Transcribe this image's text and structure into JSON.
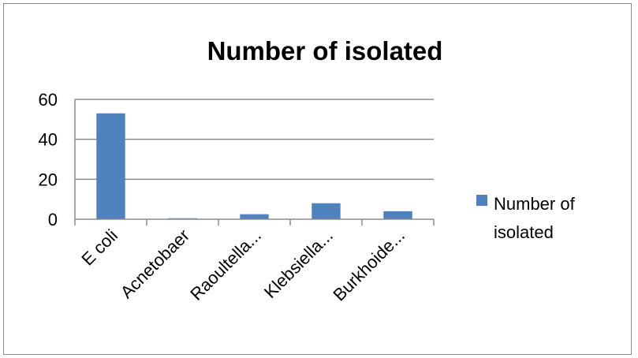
{
  "chart_data": {
    "type": "bar",
    "title": "Number of isolated",
    "xlabel": "",
    "ylabel": "",
    "categories": [
      "E coli",
      "Acnetobaer",
      "Raoultella...",
      "Klebsiella...",
      "Burkhoide..."
    ],
    "series": [
      {
        "name": "Number of isolated",
        "values": [
          53,
          0.5,
          2.5,
          8,
          4
        ]
      }
    ],
    "ylim": [
      0,
      60
    ],
    "yticks": [
      "0",
      "20",
      "40",
      "60"
    ],
    "grid": true,
    "legend": "right",
    "legend_lines": [
      "Number of",
      "isolated"
    ],
    "colors": {
      "bar": "#4f81bd",
      "grid": "#8c8c8c",
      "axis": "#8c8c8c"
    }
  }
}
